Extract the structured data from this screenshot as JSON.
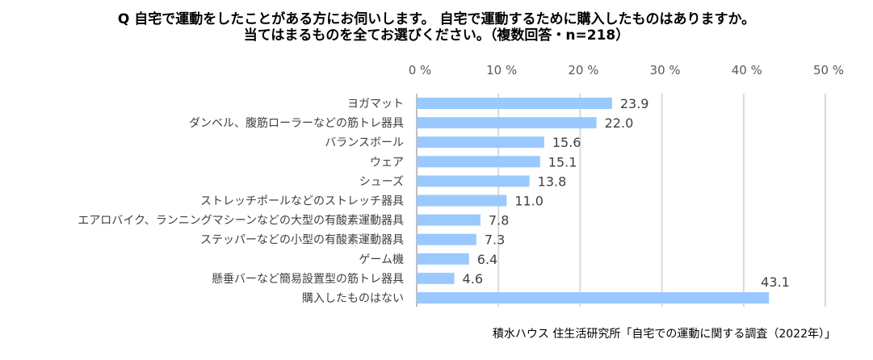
{
  "chart_data": {
    "type": "bar",
    "orientation": "horizontal",
    "title_lines": [
      "Q 自宅で運動をしたことがある方にお伺いします。 自宅で運動するために購入したものはありますか。",
      "当てはまるものを全てお選びください。（複数回答・n=218）"
    ],
    "categories": [
      "ヨガマット",
      "ダンベル、腹筋ローラーなどの筋トレ器具",
      "バランスボール",
      "ウェア",
      "シューズ",
      "ストレッチポールなどのストレッチ器具",
      "エアロバイク、ランニングマシーンなどの大型の有酸素運動器具",
      "ステッパーなどの小型の有酸素運動器具",
      "ゲーム機",
      "懸垂バーなど簡易設置型の筋トレ器具",
      "購入したものはない"
    ],
    "values": [
      23.9,
      22.0,
      15.6,
      15.1,
      13.8,
      11.0,
      7.8,
      7.3,
      6.4,
      4.6,
      43.1
    ],
    "value_labels": [
      "23.9",
      "22.0",
      "15.6",
      "15.1",
      "13.8",
      "11.0",
      "7.8",
      "7.3",
      "6.4",
      "4.6",
      "43.1"
    ],
    "xlim": [
      0,
      50
    ],
    "xticks": [
      "0 %",
      "10 %",
      "20 %",
      "30 %",
      "40 %",
      "50 %"
    ],
    "xtick_values": [
      0,
      10,
      20,
      30,
      40,
      50
    ],
    "grid": true,
    "bar_color": "#99C9FF",
    "grid_color": "#D9D9D9",
    "source": "積水ハウス 住生活研究所「自宅での運動に関する調査（2022年）」"
  }
}
